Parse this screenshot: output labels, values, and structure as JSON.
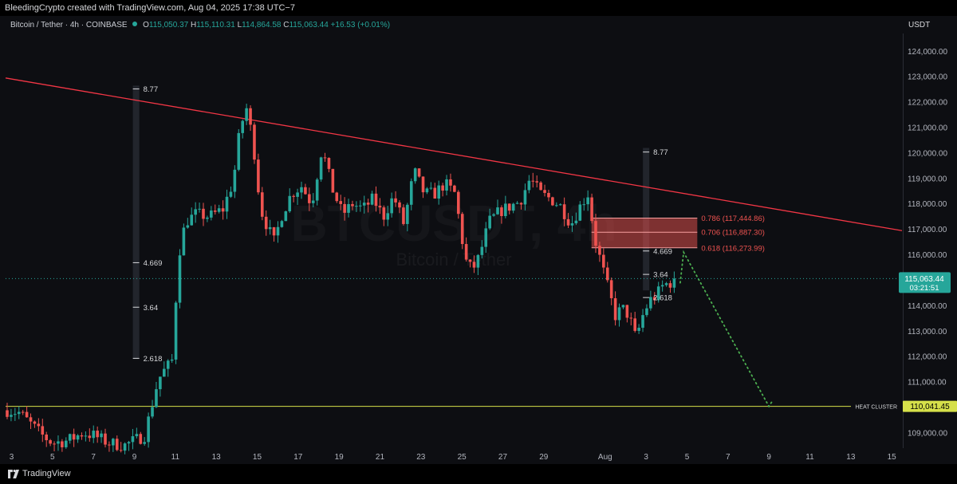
{
  "header": {
    "credit": "BleedingCrypto created with TradingView.com, Aug 04, 2025 17:38 UTC−7"
  },
  "legend": {
    "symbol": "Bitcoin / Tether · 4h · COINBASE",
    "o_label": "O",
    "o": "115,050.37",
    "h_label": "H",
    "h": "115,110.31",
    "l_label": "L",
    "l": "114,864.58",
    "c_label": "C",
    "c": "115,063.44",
    "change": "+16.53 (+0.01%)"
  },
  "currency": "USDT",
  "footer": {
    "brand": "TradingView"
  },
  "colors": {
    "up": "#26a69a",
    "down": "#ef5350",
    "trend": "#f23645",
    "heat": "#d6e04a",
    "projection": "#4caf50"
  },
  "chart_data": {
    "type": "candlestick",
    "watermark": [
      "BTCUSDT, 4h",
      "Bitcoin / Tether"
    ],
    "y_range": [
      108400,
      124700
    ],
    "y_ticks": [
      {
        "v": 109000,
        "label": "109,000.00"
      },
      {
        "v": 110000,
        "label": "110,000.00"
      },
      {
        "v": 111000,
        "label": "111,000.00"
      },
      {
        "v": 112000,
        "label": "112,000.00"
      },
      {
        "v": 113000,
        "label": "113,000.00"
      },
      {
        "v": 114000,
        "label": "114,000.00"
      },
      {
        "v": 115000,
        "label": "115,000.00"
      },
      {
        "v": 116000,
        "label": "116,000.00"
      },
      {
        "v": 117000,
        "label": "117,000.00"
      },
      {
        "v": 118000,
        "label": "118,000.00"
      },
      {
        "v": 119000,
        "label": "119,000.00"
      },
      {
        "v": 120000,
        "label": "120,000.00"
      },
      {
        "v": 121000,
        "label": "121,000.00"
      },
      {
        "v": 122000,
        "label": "122,000.00"
      },
      {
        "v": 123000,
        "label": "123,000.00"
      },
      {
        "v": 124000,
        "label": "124,000.00"
      }
    ],
    "x_range": [
      "2025-07-02T17:00",
      "2025-08-15T12:00"
    ],
    "x_ticks": [
      {
        "d": "2025-07-03",
        "label": "3"
      },
      {
        "d": "2025-07-05",
        "label": "5"
      },
      {
        "d": "2025-07-07",
        "label": "7"
      },
      {
        "d": "2025-07-09",
        "label": "9"
      },
      {
        "d": "2025-07-11",
        "label": "11"
      },
      {
        "d": "2025-07-13",
        "label": "13"
      },
      {
        "d": "2025-07-15",
        "label": "15"
      },
      {
        "d": "2025-07-17",
        "label": "17"
      },
      {
        "d": "2025-07-19",
        "label": "19"
      },
      {
        "d": "2025-07-21",
        "label": "21"
      },
      {
        "d": "2025-07-23",
        "label": "23"
      },
      {
        "d": "2025-07-25",
        "label": "25"
      },
      {
        "d": "2025-07-27",
        "label": "27"
      },
      {
        "d": "2025-07-29",
        "label": "29"
      },
      {
        "d": "2025-08-01",
        "label": "Aug"
      },
      {
        "d": "2025-08-03",
        "label": "3"
      },
      {
        "d": "2025-08-05",
        "label": "5"
      },
      {
        "d": "2025-08-07",
        "label": "7"
      },
      {
        "d": "2025-08-09",
        "label": "9"
      },
      {
        "d": "2025-08-11",
        "label": "11"
      },
      {
        "d": "2025-08-13",
        "label": "13"
      },
      {
        "d": "2025-08-15",
        "label": "15"
      }
    ],
    "price_path": [
      [
        "2025-07-02T17:00",
        109900
      ],
      [
        "2025-07-03T09:00",
        109800
      ],
      [
        "2025-07-03T21:00",
        109400
      ],
      [
        "2025-07-04T12:00",
        108900
      ],
      [
        "2025-07-05T00:00",
        108600
      ],
      [
        "2025-07-05T18:00",
        108700
      ],
      [
        "2025-07-06T12:00",
        109000
      ],
      [
        "2025-07-07T00:00",
        108900
      ],
      [
        "2025-07-07T18:00",
        108600
      ],
      [
        "2025-07-08T12:00",
        108500
      ],
      [
        "2025-07-09T00:00",
        108700
      ],
      [
        "2025-07-09T12:00",
        108900
      ],
      [
        "2025-07-09T20:00",
        110000
      ],
      [
        "2025-07-10T04:00",
        111100
      ],
      [
        "2025-07-10T12:00",
        111500
      ],
      [
        "2025-07-10T20:00",
        111800
      ],
      [
        "2025-07-11T04:00",
        116000
      ],
      [
        "2025-07-11T12:00",
        117300
      ],
      [
        "2025-07-12T00:00",
        117600
      ],
      [
        "2025-07-12T16:00",
        117500
      ],
      [
        "2025-07-13T08:00",
        117800
      ],
      [
        "2025-07-13T20:00",
        118900
      ],
      [
        "2025-07-14T04:00",
        121000
      ],
      [
        "2025-07-14T12:00",
        121800
      ],
      [
        "2025-07-14T20:00",
        120200
      ],
      [
        "2025-07-15T04:00",
        117800
      ],
      [
        "2025-07-15T12:00",
        117100
      ],
      [
        "2025-07-15T20:00",
        116500
      ],
      [
        "2025-07-16T04:00",
        117500
      ],
      [
        "2025-07-16T16:00",
        118400
      ],
      [
        "2025-07-17T04:00",
        118700
      ],
      [
        "2025-07-17T16:00",
        118000
      ],
      [
        "2025-07-18T04:00",
        120200
      ],
      [
        "2025-07-18T16:00",
        118600
      ],
      [
        "2025-07-19T04:00",
        117600
      ],
      [
        "2025-07-19T16:00",
        118000
      ],
      [
        "2025-07-20T04:00",
        117800
      ],
      [
        "2025-07-20T16:00",
        118200
      ],
      [
        "2025-07-21T04:00",
        117500
      ],
      [
        "2025-07-21T16:00",
        118300
      ],
      [
        "2025-07-22T04:00",
        117200
      ],
      [
        "2025-07-22T16:00",
        119300
      ],
      [
        "2025-07-23T04:00",
        118400
      ],
      [
        "2025-07-23T16:00",
        118400
      ],
      [
        "2025-07-24T04:00",
        118800
      ],
      [
        "2025-07-24T16:00",
        118400
      ],
      [
        "2025-07-25T04:00",
        115800
      ],
      [
        "2025-07-25T12:00",
        115400
      ],
      [
        "2025-07-25T20:00",
        115900
      ],
      [
        "2025-07-26T08:00",
        117300
      ],
      [
        "2025-07-26T20:00",
        117700
      ],
      [
        "2025-07-27T08:00",
        117900
      ],
      [
        "2025-07-27T20:00",
        118100
      ],
      [
        "2025-07-28T08:00",
        119000
      ],
      [
        "2025-07-28T20:00",
        118400
      ],
      [
        "2025-07-29T08:00",
        118200
      ],
      [
        "2025-07-29T20:00",
        117900
      ],
      [
        "2025-07-30T08:00",
        117200
      ],
      [
        "2025-07-30T20:00",
        118000
      ],
      [
        "2025-07-31T04:00",
        118400
      ],
      [
        "2025-07-31T12:00",
        116600
      ],
      [
        "2025-07-31T20:00",
        115600
      ],
      [
        "2025-08-01T04:00",
        114600
      ],
      [
        "2025-08-01T12:00",
        113600
      ],
      [
        "2025-08-01T20:00",
        113900
      ],
      [
        "2025-08-02T04:00",
        113600
      ],
      [
        "2025-08-02T12:00",
        112700
      ],
      [
        "2025-08-02T20:00",
        113600
      ],
      [
        "2025-08-03T04:00",
        114200
      ],
      [
        "2025-08-03T12:00",
        114400
      ],
      [
        "2025-08-03T20:00",
        114800
      ],
      [
        "2025-08-04T04:00",
        114900
      ],
      [
        "2025-08-04T12:00",
        115063
      ]
    ],
    "trendline": {
      "points": [
        [
          "2025-07-02T17:00",
          122950
        ],
        [
          "2025-08-15T12:00",
          116950
        ]
      ]
    },
    "heat_cluster": {
      "value": 110041.45,
      "label": "HEAT CLUSTER",
      "price_label": "110,041.45"
    },
    "current_price": {
      "value": 115063.44,
      "label": "115,063.44",
      "countdown": "03:21:51"
    },
    "fib_zone": {
      "range": [
        116273.99,
        117444.86
      ],
      "from": "2025-07-31T08:00",
      "to": "2025-08-05T12:00",
      "levels": [
        {
          "v": 117444.86,
          "label": "0.786 (117,444.86)"
        },
        {
          "v": 116887.3,
          "label": "0.706 (116,887.30)"
        },
        {
          "v": 116273.99,
          "label": "0.618 (116,273.99)"
        }
      ]
    },
    "extension_sets": [
      {
        "t": "2025-07-09T02:00",
        "bar_range": [
          111900,
          122650
        ],
        "levels": [
          {
            "v": 122520,
            "label": "8.77"
          },
          {
            "v": 115690,
            "label": "4.669"
          },
          {
            "v": 113940,
            "label": "3.64"
          },
          {
            "v": 111930,
            "label": "2.618"
          }
        ]
      },
      {
        "t": "2025-08-03T00:00",
        "bar_range": [
          114600,
          120200
        ],
        "levels": [
          {
            "v": 120040,
            "label": "8.77"
          },
          {
            "v": 116150,
            "label": "4.669"
          },
          {
            "v": 115230,
            "label": "3.64"
          },
          {
            "v": 114320,
            "label": "2.618"
          }
        ]
      }
    ],
    "projection": [
      [
        "2025-08-04T16:00",
        114900
      ],
      [
        "2025-08-04T20:00",
        116100
      ],
      [
        "2025-08-09T00:00",
        110041
      ],
      [
        "2025-08-09T04:00",
        110250
      ]
    ]
  }
}
